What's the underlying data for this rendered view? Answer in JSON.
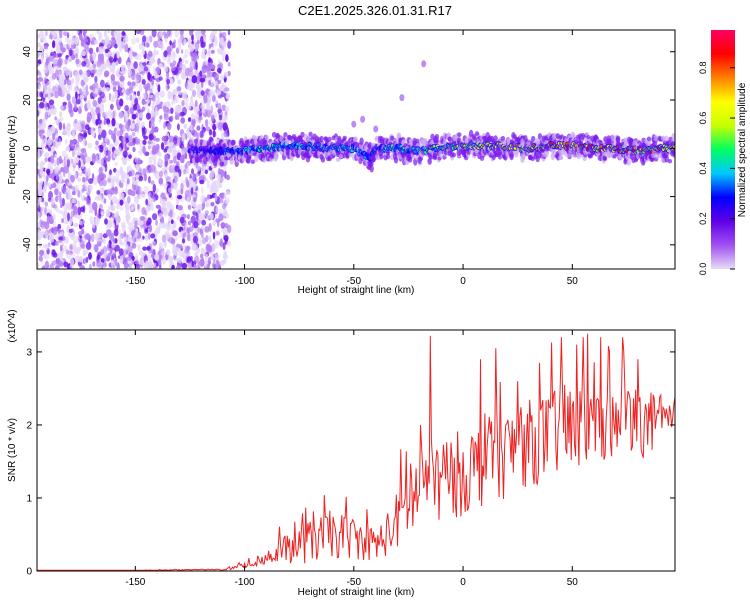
{
  "figure_title": "C2E1.2025.326.01.31.R17",
  "chart_data": [
    {
      "type": "heatmap",
      "title": "C2E1.2025.326.01.31.R17",
      "xlabel": "Height of straight line (km)",
      "ylabel": "Frequency (Hz)",
      "xlim": [
        -195,
        97
      ],
      "ylim": [
        -50,
        49
      ],
      "x_ticks": [
        -150,
        -100,
        -50,
        0,
        50
      ],
      "x_tick_labels": [
        "-150",
        "-100",
        "-50",
        "0",
        "50"
      ],
      "y_ticks": [
        -40,
        -20,
        0,
        20,
        40
      ],
      "y_tick_labels": [
        "-40",
        "-20",
        "0",
        "20",
        "40"
      ],
      "colorbar": {
        "label": "Normalized spectral amplitude",
        "range": [
          0,
          0.95
        ],
        "ticks": [
          0.0,
          0.2,
          0.4,
          0.6,
          0.8
        ],
        "tick_labels": [
          "0.0",
          "0.2",
          "0.4",
          "0.6",
          "0.8"
        ],
        "colormap": [
          "#e8dcf8",
          "#a050f0",
          "#6000e8",
          "#0000ff",
          "#00c8ff",
          "#00ff60",
          "#c8ff00",
          "#ffff00",
          "#ff8000",
          "#ff0000",
          "#ff0060"
        ]
      },
      "noise_region_x": [
        -195,
        -110
      ],
      "signal_track": {
        "x": [
          -125,
          -110,
          -100,
          -90,
          -80,
          -70,
          -60,
          -50,
          -45,
          -42,
          -40,
          -30,
          -20,
          -10,
          0,
          10,
          20,
          30,
          40,
          50,
          60,
          70,
          80,
          90,
          97
        ],
        "freq_hz": [
          -1,
          -1,
          -1,
          0,
          1,
          1,
          0,
          0,
          -3,
          -4,
          0,
          0,
          -1,
          0,
          1,
          1,
          1,
          0,
          1,
          1,
          0,
          0,
          -1,
          0,
          0
        ],
        "amplitude": [
          0.2,
          0.3,
          0.4,
          0.45,
          0.45,
          0.45,
          0.45,
          0.4,
          0.35,
          0.3,
          0.4,
          0.45,
          0.5,
          0.55,
          0.6,
          0.65,
          0.7,
          0.75,
          0.8,
          0.85,
          0.85,
          0.85,
          0.8,
          0.8,
          0.8
        ]
      }
    },
    {
      "type": "line",
      "xlabel": "Height of straight line (km)",
      "ylabel": "SNR (10 * v/v)",
      "y_scale_label": "(x10^4)",
      "xlim": [
        -195,
        97
      ],
      "ylim": [
        0,
        3.3
      ],
      "x_ticks": [
        -150,
        -100,
        -50,
        0,
        50
      ],
      "x_tick_labels": [
        "-150",
        "-100",
        "-50",
        "0",
        "50"
      ],
      "y_ticks": [
        0,
        1,
        2,
        3
      ],
      "y_tick_labels": [
        "0",
        "1",
        "2",
        "3"
      ],
      "color": "#ee2222",
      "series": [
        {
          "name": "SNR",
          "x": [
            -195,
            -150,
            -110,
            -105,
            -100,
            -95,
            -90,
            -85,
            -80,
            -75,
            -70,
            -65,
            -60,
            -55,
            -50,
            -45,
            -40,
            -35,
            -30,
            -25,
            -20,
            -15,
            -10,
            -5,
            0,
            5,
            10,
            15,
            20,
            25,
            30,
            35,
            40,
            45,
            50,
            55,
            60,
            65,
            70,
            75,
            80,
            85,
            90,
            97
          ],
          "values": [
            0.01,
            0.01,
            0.02,
            0.04,
            0.08,
            0.12,
            0.18,
            0.25,
            0.3,
            0.35,
            0.4,
            0.45,
            0.5,
            0.48,
            0.45,
            0.4,
            0.35,
            0.5,
            0.7,
            0.9,
            1.1,
            1.2,
            1.25,
            1.3,
            1.35,
            1.4,
            1.5,
            1.55,
            1.6,
            1.7,
            1.75,
            1.8,
            1.85,
            1.9,
            1.95,
            2.0,
            2.0,
            2.0,
            2.0,
            2.0,
            2.05,
            2.0,
            2.0,
            2.0
          ],
          "spread": [
            0.0,
            0.0,
            0.01,
            0.02,
            0.05,
            0.08,
            0.12,
            0.15,
            0.2,
            0.25,
            0.3,
            0.3,
            0.35,
            0.3,
            0.3,
            0.25,
            0.25,
            0.3,
            0.4,
            0.5,
            0.55,
            0.6,
            0.6,
            0.6,
            0.6,
            0.6,
            0.6,
            0.6,
            0.6,
            0.6,
            0.6,
            0.6,
            0.6,
            0.6,
            0.6,
            0.6,
            0.55,
            0.55,
            0.5,
            0.5,
            0.5,
            0.45,
            0.45,
            0.4
          ],
          "peaks": [
            [
              -15,
              3.22
            ],
            [
              8,
              2.9
            ],
            [
              15,
              3.05
            ],
            [
              25,
              2.6
            ],
            [
              35,
              2.85
            ],
            [
              45,
              3.2
            ],
            [
              52,
              3.1
            ],
            [
              57,
              3.25
            ],
            [
              63,
              3.2
            ],
            [
              73,
              3.2
            ],
            [
              80,
              2.9
            ]
          ]
        }
      ]
    }
  ]
}
